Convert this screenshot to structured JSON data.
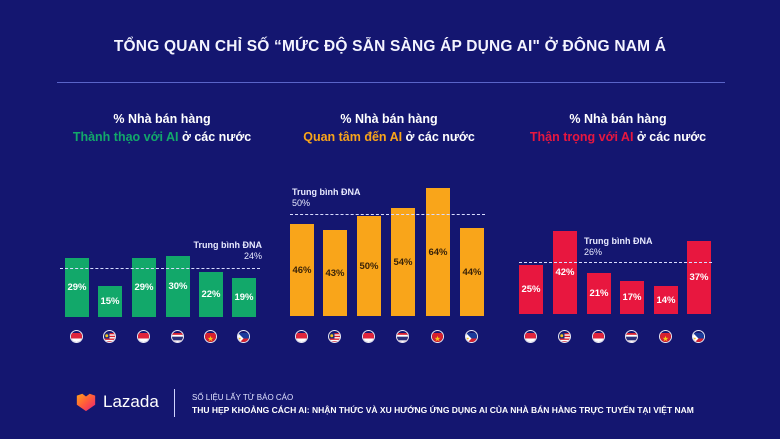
{
  "title": "TỔNG QUAN CHỈ SỐ “MỨC ĐỘ SẴN SÀNG ÁP DỤNG AI\" Ở ĐÔNG NAM Á",
  "countries": [
    "Singapore",
    "Malaysia",
    "Indonesia",
    "Thailand",
    "Vietnam",
    "Philippines"
  ],
  "panels": [
    {
      "line1": "% Nhà bán hàng",
      "accent": "Thành thạo với AI",
      "suffix": " ở các nước",
      "color": "#12a86a",
      "avg_label": "Trung bình ĐNA",
      "avg_value": "24%",
      "values": [
        "29%",
        "15%",
        "29%",
        "30%",
        "22%",
        "19%"
      ]
    },
    {
      "line1": "% Nhà bán hàng",
      "accent": "Quan tâm đến AI",
      "suffix": " ở các nước",
      "color": "#f9a51a",
      "avg_label": "Trung bình ĐNA",
      "avg_value": "50%",
      "values": [
        "46%",
        "43%",
        "50%",
        "54%",
        "64%",
        "44%"
      ]
    },
    {
      "line1": "% Nhà bán hàng",
      "accent": "Thận trọng với AI",
      "suffix": " ở các nước",
      "color": "#e8173f",
      "avg_label": "Trung bình ĐNA",
      "avg_value": "26%",
      "values": [
        "25%",
        "42%",
        "21%",
        "17%",
        "14%",
        "37%"
      ]
    }
  ],
  "footer": {
    "brand": "Lazada",
    "source_label": "SỐ LIỆU LẤY TỪ BÁO CÁO",
    "source_title": "THU HẸP KHOẢNG CÁCH AI: NHẬN THỨC VÀ XU HƯỚNG ỨNG DỤNG AI CỦA NHÀ BÁN HÀNG TRỰC TUYẾN TẠI VIỆT NAM"
  },
  "chart_data": [
    {
      "type": "bar",
      "title": "% Nhà bán hàng Thành thạo với AI ở các nước",
      "categories": [
        "Singapore",
        "Malaysia",
        "Indonesia",
        "Thailand",
        "Vietnam",
        "Philippines"
      ],
      "values": [
        29,
        15,
        29,
        30,
        22,
        19
      ],
      "reference_line": {
        "label": "Trung bình ĐNA",
        "value": 24
      },
      "color": "#12a86a",
      "unit": "%"
    },
    {
      "type": "bar",
      "title": "% Nhà bán hàng Quan tâm đến AI ở các nước",
      "categories": [
        "Singapore",
        "Malaysia",
        "Indonesia",
        "Thailand",
        "Vietnam",
        "Philippines"
      ],
      "values": [
        46,
        43,
        50,
        54,
        64,
        44
      ],
      "reference_line": {
        "label": "Trung bình ĐNA",
        "value": 50
      },
      "color": "#f9a51a",
      "unit": "%"
    },
    {
      "type": "bar",
      "title": "% Nhà bán hàng Thận trọng với AI ở các nước",
      "categories": [
        "Singapore",
        "Malaysia",
        "Indonesia",
        "Thailand",
        "Vietnam",
        "Philippines"
      ],
      "values": [
        25,
        42,
        21,
        17,
        14,
        37
      ],
      "reference_line": {
        "label": "Trung bình ĐNA",
        "value": 26
      },
      "color": "#e8173f",
      "unit": "%"
    }
  ]
}
